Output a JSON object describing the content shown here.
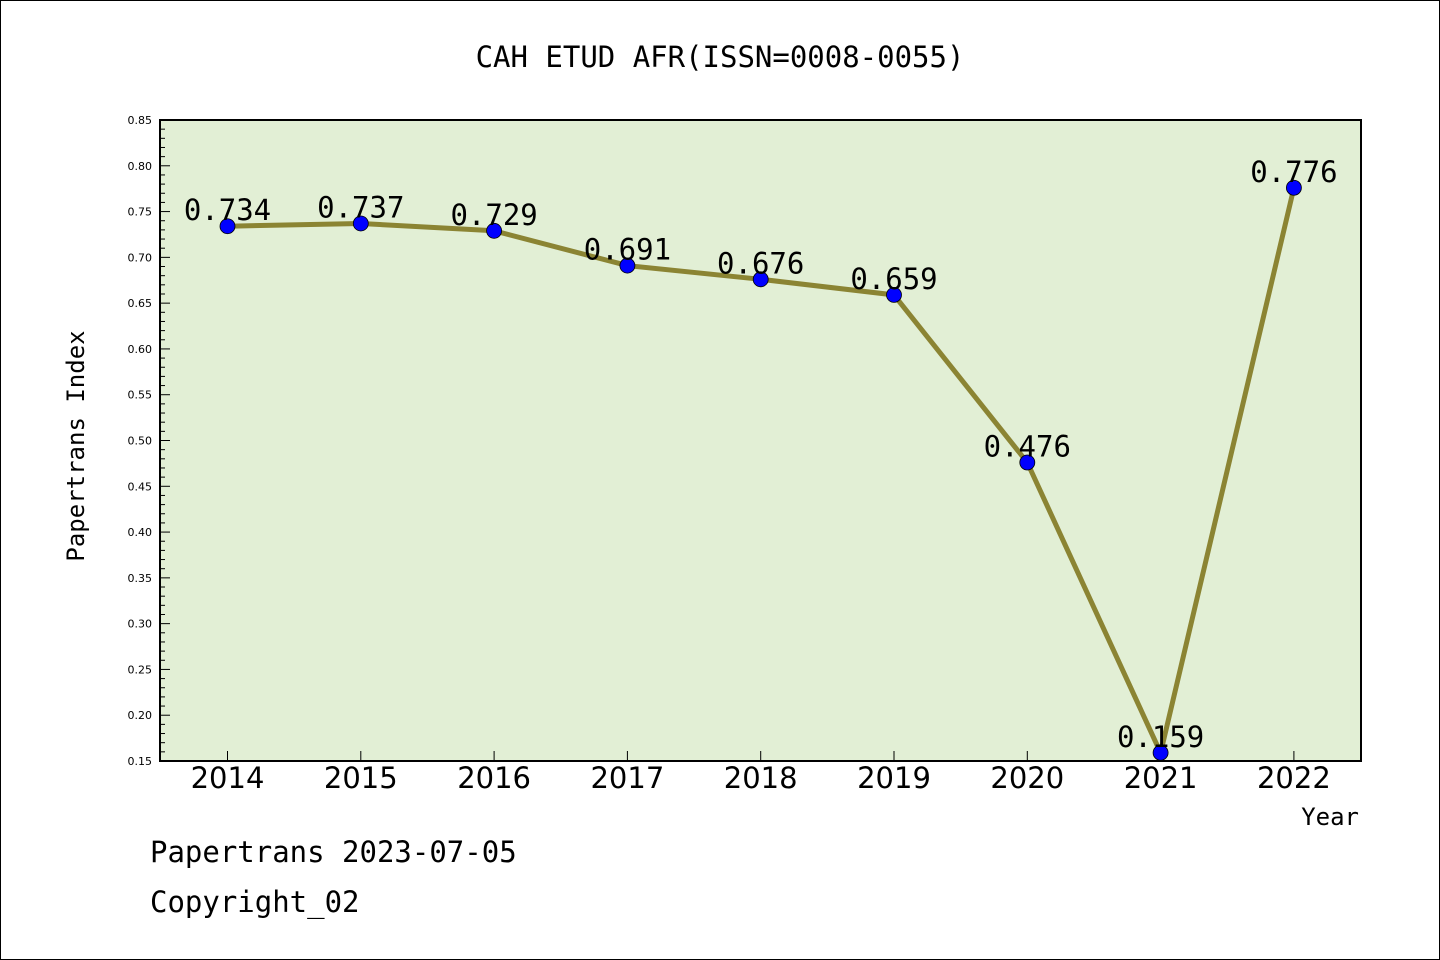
{
  "chart_data": {
    "type": "line",
    "title": "CAH ETUD AFR(ISSN=0008-0055)",
    "xlabel": "Year",
    "ylabel": "Papertrans Index",
    "categories": [
      "2014",
      "2015",
      "2016",
      "2017",
      "2018",
      "2019",
      "2020",
      "2021",
      "2022"
    ],
    "series": [
      {
        "values": [
          0.734,
          0.737,
          0.729,
          0.691,
          0.676,
          0.659,
          0.476,
          0.159,
          0.776
        ],
        "labels": [
          "0.734",
          "0.737",
          "0.729",
          "0.691",
          "0.676",
          "0.659",
          "0.476",
          "0.159",
          "0.776"
        ]
      }
    ],
    "ylim": [
      0.15,
      0.85
    ],
    "yticks": [
      "0.15",
      "0.20",
      "0.25",
      "0.30",
      "0.35",
      "0.40",
      "0.45",
      "0.50",
      "0.55",
      "0.60",
      "0.65",
      "0.70",
      "0.75",
      "0.80",
      "0.85"
    ],
    "grid": false,
    "colors": {
      "plot_background": "#e2efd5",
      "line": "#8b8433",
      "marker": "#0000ff"
    }
  },
  "footer": {
    "source": "Papertrans 2023-07-05",
    "copyright": "Copyright_02"
  }
}
